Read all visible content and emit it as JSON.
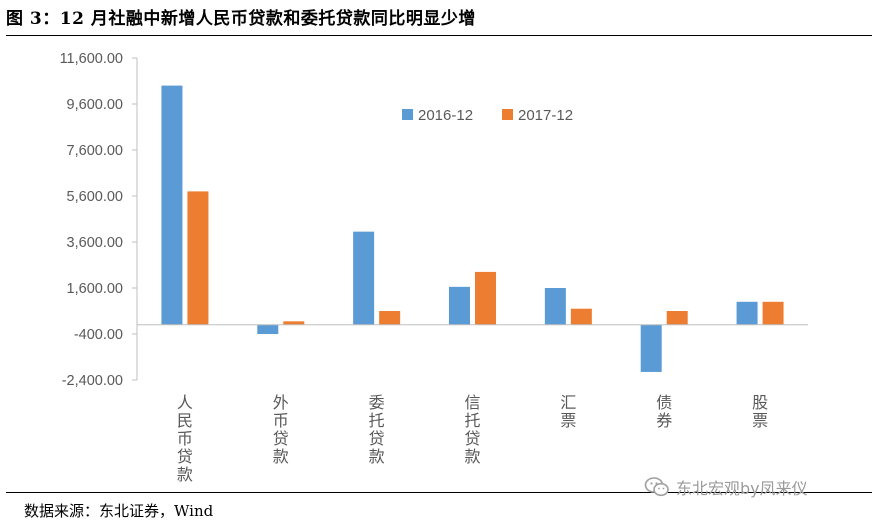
{
  "title": "图 3：12 月社融中新增人民币贷款和委托贷款同比明显少增",
  "source": "数据来源：东北证券，Wind",
  "watermark": "东北宏观by凤来仪",
  "colors": {
    "series_2016": "#5b9bd5",
    "series_2017": "#ed7d31",
    "axis": "#bfbfbf",
    "text": "#595959"
  },
  "chart_data": {
    "type": "bar",
    "categories": [
      "人民币贷款",
      "外币贷款",
      "委托贷款",
      "信托贷款",
      "汇票",
      "债券",
      "股票"
    ],
    "series": [
      {
        "name": "2016-12",
        "values": [
          10400,
          -400,
          4050,
          1650,
          1600,
          -2050,
          1000
        ]
      },
      {
        "name": "2017-12",
        "values": [
          5800,
          150,
          600,
          2300,
          700,
          600,
          1000
        ]
      }
    ],
    "y_ticks": [
      "11,600.00",
      "9,600.00",
      "7,600.00",
      "5,600.00",
      "3,600.00",
      "1,600.00",
      "-400.00",
      "-2,400.00"
    ],
    "ylim": [
      -2400,
      11600
    ],
    "ystep": 2000,
    "legend_position": "top-right",
    "grid": false
  }
}
